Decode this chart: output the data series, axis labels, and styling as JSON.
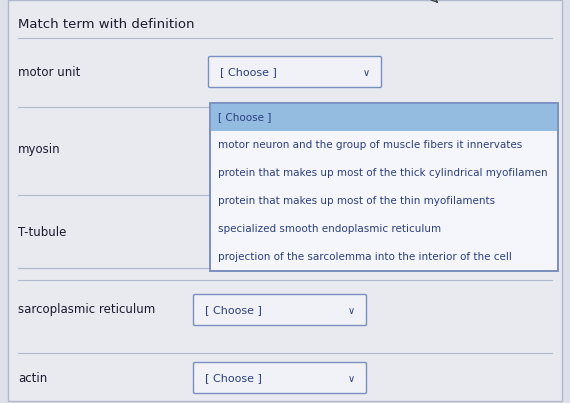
{
  "title": "Match term with definition",
  "bg_color": "#dde0e8",
  "panel_color": "#e8eaf0",
  "terms": [
    "motor unit",
    "myosin",
    "T-tubule",
    "sarcoplasmic reticulum",
    "actin"
  ],
  "dropdown_label": "[ Choose ]",
  "dropdown_border": "#7a8fc0",
  "dropdown_fill": "#f0f2f8",
  "dropdown_text_color": "#2c3e80",
  "open_menu_fill": "#f4f6fb",
  "open_menu_border": "#7a8fc0",
  "highlight_fill": "#93bce0",
  "separator_color": "#b0b8cc",
  "term_color": "#1a1a2e",
  "title_color": "#1a1a2e",
  "menu_items": [
    "[ Choose ]",
    "motor neuron and the group of muscle fibers it innervates",
    "protein that makes up most of the thick cylindrical myofilamen",
    "protein that makes up most of the thin myofilaments",
    "specialized smooth endoplasmic reticulum",
    "projection of the sarcolemma into the interior of the cell"
  ],
  "menu_item_colors": [
    "#93bce0",
    "#f4f6fb",
    "#f4f6fb",
    "#f4f6fb",
    "#f4f6fb",
    "#f4f6fb"
  ]
}
